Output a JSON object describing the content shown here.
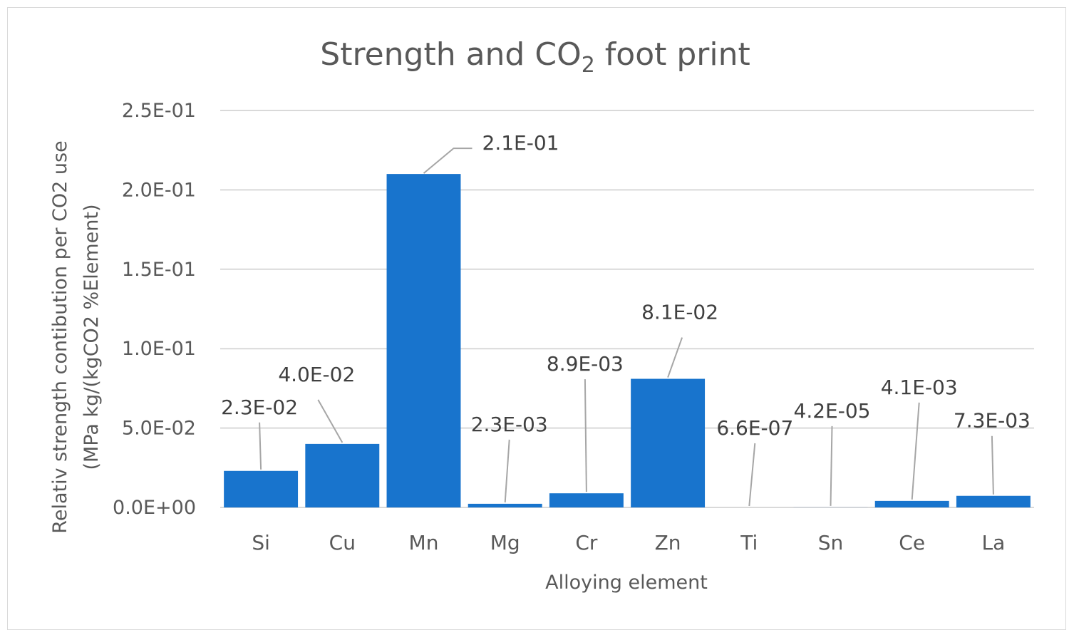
{
  "chart_data": {
    "type": "bar",
    "title": "Strength and CO",
    "title_subscript": "2",
    "title_suffix": " foot print",
    "xlabel": "Alloying element",
    "ylabel_line1": "Relativ  strength contibution per CO2 use",
    "ylabel_line2": "(MPa kg/(kgCO2 %Element)",
    "ylim": [
      0,
      0.25
    ],
    "yticks": [
      0,
      0.05,
      0.1,
      0.15,
      0.2,
      0.25
    ],
    "ytick_labels": [
      "0.0E+00",
      "5.0E-02",
      "1.0E-01",
      "1.5E-01",
      "2.0E-01",
      "2.5E-01"
    ],
    "grid": true,
    "categories": [
      "Si",
      "Cu",
      "Mn",
      "Mg",
      "Cr",
      "Zn",
      "Ti",
      "Sn",
      "Ce",
      "La"
    ],
    "values": [
      0.023,
      0.04,
      0.21,
      0.0023,
      0.0089,
      0.081,
      6.6e-07,
      4.2e-05,
      0.0041,
      0.0073
    ],
    "data_labels": [
      "2.3E-02",
      "4.0E-02",
      "2.1E-01",
      "2.3E-03",
      "8.9E-03",
      "8.1E-02",
      "6.6E-07",
      "4.2E-05",
      "4.1E-03",
      "7.3E-03"
    ],
    "bar_color": "#1874cd",
    "gridline_color": "#d9d9d9",
    "leader_line_color": "#a6a6a6"
  }
}
